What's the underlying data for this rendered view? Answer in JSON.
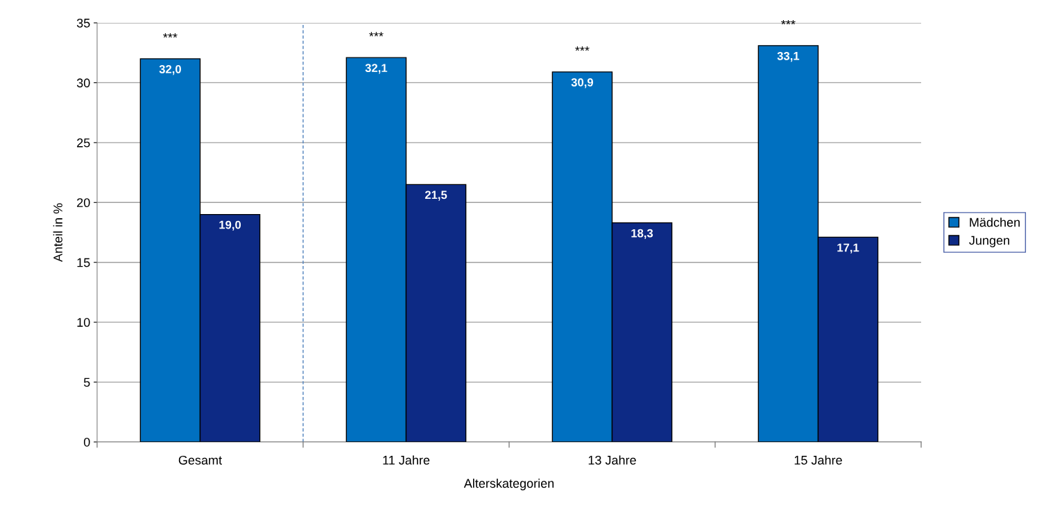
{
  "chart_data": {
    "type": "bar",
    "xlabel": "Alterskategorien",
    "ylabel": "Anteil in %",
    "categories": [
      "Gesamt",
      "11 Jahre",
      "13 Jahre",
      "15 Jahre"
    ],
    "series": [
      {
        "name": "Mädchen",
        "color": "#0070c0",
        "values": [
          32.0,
          32.1,
          30.9,
          33.1
        ],
        "value_labels": [
          "32,0",
          "32,1",
          "30,9",
          "33,1"
        ]
      },
      {
        "name": "Jungen",
        "color": "#0d2a85",
        "values": [
          19.0,
          21.5,
          18.3,
          17.1
        ],
        "value_labels": [
          "19,0",
          "21,5",
          "18,3",
          "17,1"
        ]
      }
    ],
    "ylim": [
      0,
      35
    ],
    "yticks": [
      0,
      5,
      10,
      15,
      20,
      25,
      30,
      35
    ],
    "grid": "y",
    "legend": "right",
    "annotations": [
      "***",
      "***",
      "***",
      "***"
    ]
  }
}
